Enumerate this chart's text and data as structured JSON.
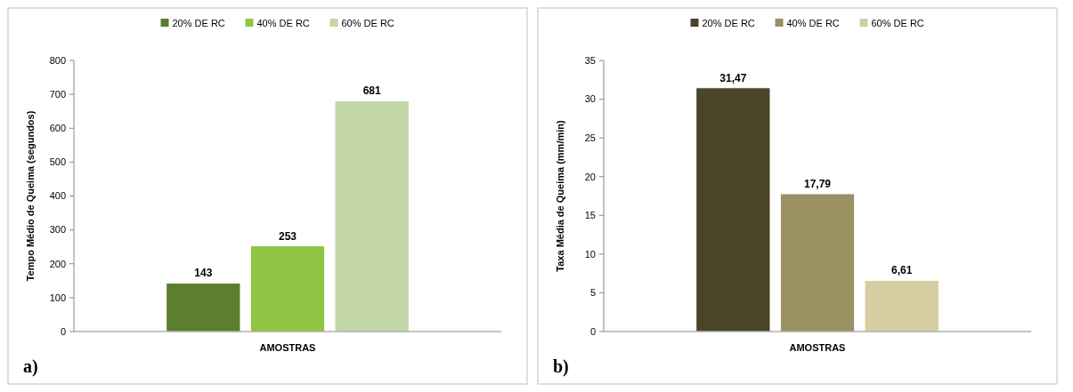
{
  "chart_data": [
    {
      "type": "bar",
      "categories": [
        null
      ],
      "xlabel": "AMOSTRAS",
      "ylabel": "Tempo Médio de Queima (segundos)",
      "ylim": [
        0,
        800
      ],
      "yticks": [
        0,
        100,
        200,
        300,
        400,
        500,
        600,
        700,
        800
      ],
      "legend": "top",
      "data_labels": true,
      "annotations": [
        "a)"
      ],
      "series": [
        {
          "name": "20% DE RC",
          "color": "#5b7f2f",
          "values": [
            143
          ]
        },
        {
          "name": "40% DE RC",
          "color": "#8fc543",
          "values": [
            253
          ]
        },
        {
          "name": "60% DE RC",
          "color": "#c3d6a6",
          "values": [
            681
          ]
        }
      ]
    },
    {
      "type": "bar",
      "categories": [
        null
      ],
      "xlabel": "AMOSTRAS",
      "ylabel": "Taxa  Média de Queima (mm/min)",
      "ylim": [
        0,
        35
      ],
      "yticks": [
        0,
        5,
        10,
        15,
        20,
        25,
        30,
        35
      ],
      "legend": "top",
      "annotations": [
        "b)"
      ],
      "series": [
        {
          "name": "20% DE RC",
          "color": "#4a4529",
          "values": [
            31.47
          ],
          "value_labels": [
            "31,47"
          ]
        },
        {
          "name": "40% DE RC",
          "color": "#9b9061",
          "values": [
            17.79
          ],
          "value_labels": [
            "17,79"
          ]
        },
        {
          "name": "60% DE RC",
          "color": "#d6cda2",
          "values": [
            6.61
          ],
          "value_labels": [
            "6,61"
          ]
        }
      ]
    }
  ]
}
